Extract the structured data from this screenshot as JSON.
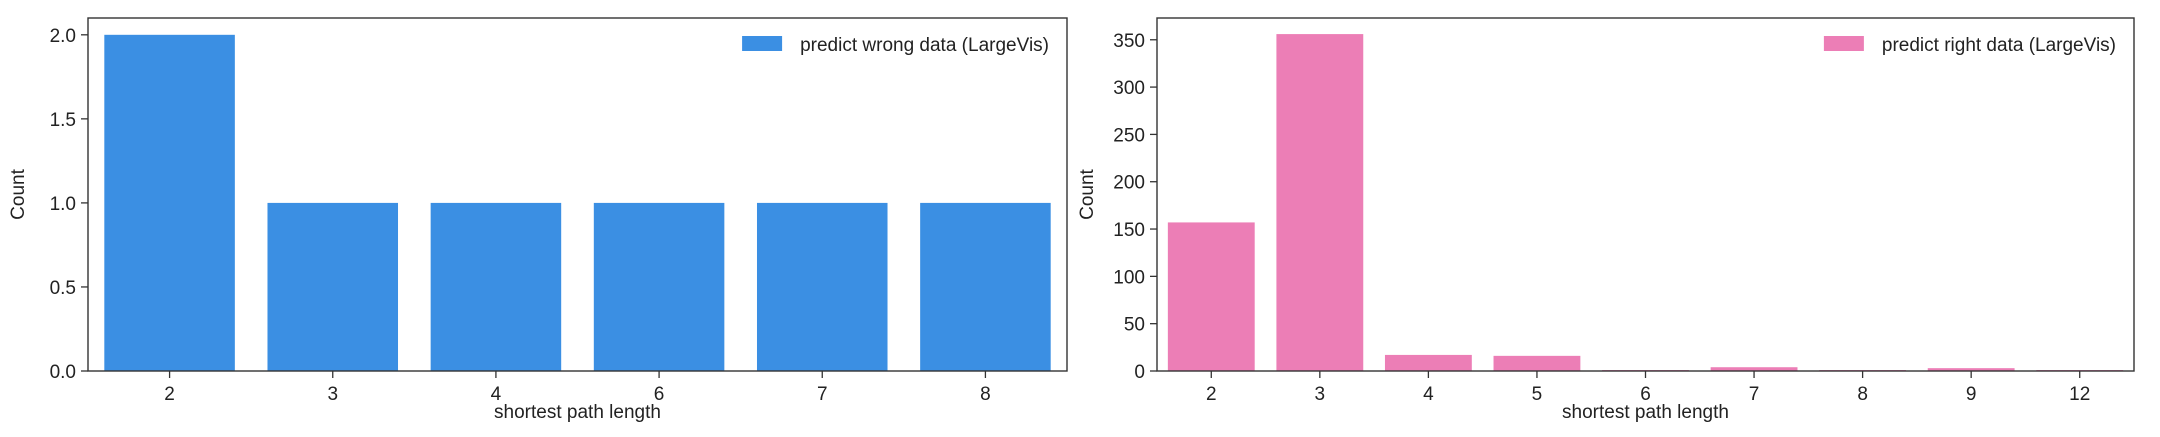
{
  "chart_data": [
    {
      "type": "bar",
      "categories": [
        "2",
        "3",
        "4",
        "6",
        "7",
        "8"
      ],
      "series": [
        {
          "name": "predict wrong data (LargeVis)",
          "values": [
            2,
            1,
            1,
            1,
            1,
            1
          ],
          "color": "#3b8fe3"
        }
      ],
      "xlabel": "shortest path length",
      "ylabel": "Count",
      "ylim": [
        0,
        2.1
      ],
      "yticks": [
        0.0,
        0.5,
        1.0,
        1.5,
        2.0
      ],
      "ytick_labels": [
        "0.0",
        "0.5",
        "1.0",
        "1.5",
        "2.0"
      ],
      "grid": false,
      "legend_position": "top-right"
    },
    {
      "type": "bar",
      "categories": [
        "2",
        "3",
        "4",
        "5",
        "6",
        "7",
        "8",
        "9",
        "12"
      ],
      "series": [
        {
          "name": "predict right data (LargeVis)",
          "values": [
            157,
            356,
            17,
            16,
            1,
            4,
            1,
            3,
            1
          ],
          "color": "#ec7eb6"
        }
      ],
      "xlabel": "shortest path length",
      "ylabel": "Count",
      "ylim": [
        0,
        373
      ],
      "yticks": [
        0,
        50,
        100,
        150,
        200,
        250,
        300,
        350
      ],
      "ytick_labels": [
        "0",
        "50",
        "100",
        "150",
        "200",
        "250",
        "300",
        "350"
      ],
      "grid": false,
      "legend_position": "top-right"
    }
  ]
}
